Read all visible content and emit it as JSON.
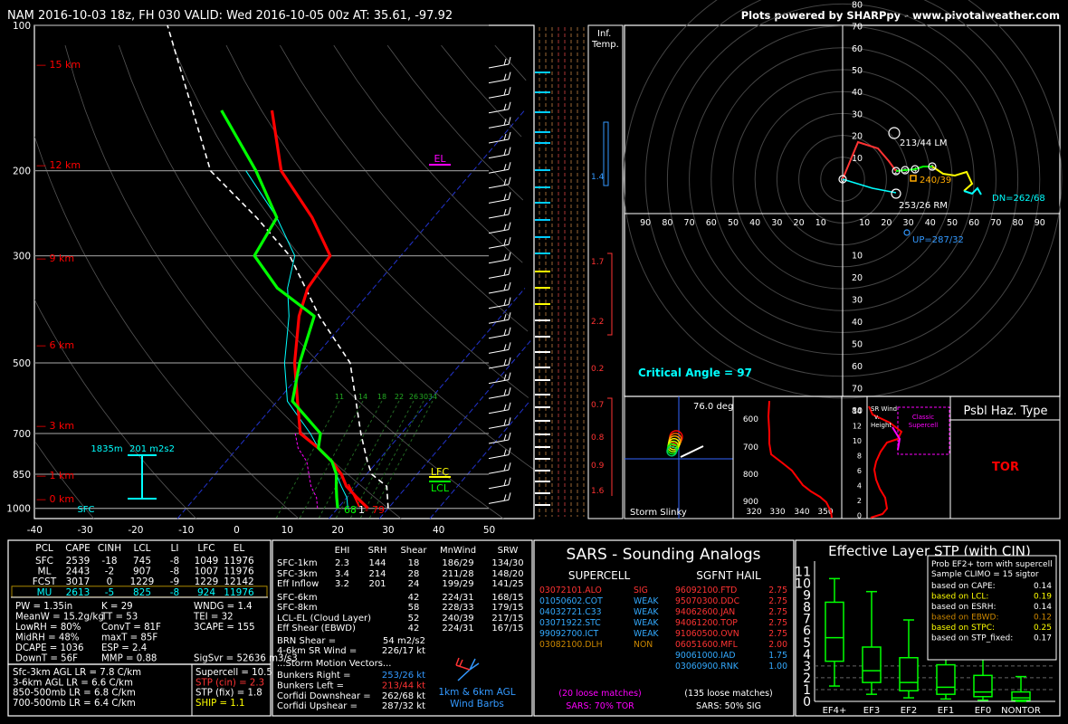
{
  "header": {
    "title": "NAM 2016-10-03 18z, FH 030    VALID: Wed 2016-10-05 00z    AT: 35.61, -97.92",
    "credit": "Plots powered by SHARPpy - www.pivotalweather.com"
  },
  "skewt": {
    "pressure_levels": [
      "100",
      "200",
      "300",
      "500",
      "700",
      "850",
      "1000"
    ],
    "temp_ticks": [
      "-40",
      "-30",
      "-20",
      "-10",
      "0",
      "10",
      "20",
      "30",
      "40",
      "50"
    ],
    "height_labels": [
      "15 km",
      "12 km",
      "9 km",
      "6 km",
      "3 km",
      "1 km",
      "0 km"
    ],
    "el_label": "EL",
    "lfc_label": "LFC",
    "lcl_label": "LCL",
    "sfc_label": "SFC",
    "srh_depth": "1835m",
    "srh_value": "201 m2s2",
    "sfc_td": "68",
    "sfc_sep": "1",
    "sfc_t": "79",
    "mixing_ratios": [
      "11",
      "14",
      "18",
      "22",
      "26",
      "30",
      "34"
    ],
    "colors": {
      "temp": "#ff0000",
      "dewpoint": "#00ff00",
      "parcel": "#ffffff",
      "wetbulb": "#00ffff",
      "virtual": "#ff00ff"
    },
    "chart_data": {
      "type": "line",
      "title": "",
      "xlabel": "",
      "ylabel": "",
      "series": [
        {
          "name": "",
          "color": "#ff0000",
          "x": [
            26,
            22,
            18,
            15,
            11,
            6,
            0,
            -6,
            -13,
            -20,
            -23,
            -24,
            -34,
            -48,
            -60
          ],
          "y": [
            1000,
            950,
            900,
            850,
            800,
            750,
            700,
            600,
            500,
            400,
            350,
            300,
            250,
            200,
            150
          ]
        },
        {
          "name": "",
          "color": "#00ff00",
          "x": [
            20,
            18,
            16,
            14,
            11,
            6,
            4,
            -7,
            -12,
            -17,
            -29,
            -39,
            -41,
            -53,
            -70
          ],
          "y": [
            1000,
            950,
            900,
            850,
            800,
            750,
            700,
            600,
            500,
            400,
            350,
            300,
            250,
            200,
            150
          ]
        }
      ]
    }
  },
  "panels": {
    "inf_temp": "Inf.\nTemp.",
    "inflow_values": [
      "1.4",
      "1.7",
      "2.2",
      "0.2",
      "0.7",
      "0.8",
      "0.9",
      "1.6"
    ],
    "hodograph": {
      "rings": [
        "10",
        "20",
        "30",
        "40",
        "50",
        "60",
        "70",
        "80"
      ],
      "x_ticks_left": [
        "90",
        "80",
        "70",
        "60",
        "50",
        "40",
        "30",
        "20",
        "10"
      ],
      "x_ticks_right": [
        "10",
        "20",
        "30",
        "40",
        "50",
        "60",
        "70",
        "80",
        "90"
      ],
      "lm": "213/44 LM",
      "rm": "253/26 RM",
      "mean": "240/39",
      "dn": "DN=262/68",
      "up": "UP=287/32",
      "critical_angle": "Critical Angle = 97"
    },
    "slinky": {
      "angle": "76.0 deg",
      "label": "Storm Slinky"
    },
    "theta": {
      "y_ticks": [
        "600",
        "700",
        "800",
        "900"
      ],
      "x_ticks": [
        "320",
        "330",
        "340",
        "350"
      ]
    },
    "srwind": {
      "y_ticks": [
        "14",
        "12",
        "10",
        "8",
        "6",
        "4",
        "2",
        "0"
      ],
      "label1": "SR Wind",
      "label2": "v.",
      "label3": "Height",
      "label4": "Classic",
      "label5": "Supercell"
    },
    "hazard": {
      "title": "Psbl Haz. Type",
      "value": "TOR"
    }
  },
  "parcels": {
    "headers": [
      "PCL",
      "CAPE",
      "CINH",
      "LCL",
      "LI",
      "LFC",
      "EL"
    ],
    "rows": [
      [
        "SFC",
        "2539",
        "-18",
        "745",
        "-8",
        "1049",
        "11976"
      ],
      [
        "ML",
        "2443",
        "-2",
        "907",
        "-8",
        "1007",
        "11976"
      ],
      [
        "FCST",
        "3017",
        "0",
        "1229",
        "-9",
        "1229",
        "12142"
      ],
      [
        "MU",
        "2613",
        "-5",
        "825",
        "-8",
        "924",
        "11976"
      ]
    ]
  },
  "thermo": {
    "col1": [
      "PW = 1.35in",
      "MeanW = 15.2g/kg",
      "LowRH = 80%",
      "MidRH = 48%",
      "DCAPE = 1036",
      "DownT = 56F"
    ],
    "col2": [
      "K = 29",
      "TT = 53",
      "ConvT = 81F",
      "maxT = 85F",
      "ESP = 2.4",
      "MMP = 0.88"
    ],
    "col3": [
      "WNDG = 1.4",
      "TEI = 32",
      "3CAPE = 155",
      "",
      "",
      "SigSvr = 52636 m3/s3"
    ],
    "lapse": [
      "Sfc-3km AGL LR = 7.8 C/km",
      "3-6km AGL LR = 6.6 C/km",
      "850-500mb LR = 6.8 C/km",
      "700-500mb LR = 6.4 C/km"
    ],
    "indices": [
      "Supercell = 10.5",
      "STP (cin) = 2.3",
      "STP (fix) = 1.8",
      "SHIP = 1.1"
    ]
  },
  "kinematics": {
    "headers": [
      "EHI",
      "SRH",
      "Shear",
      "MnWind",
      "SRW"
    ],
    "rows": [
      [
        "SFC-1km",
        "2.3",
        "144",
        "18",
        "186/29",
        "134/30"
      ],
      [
        "SFC-3km",
        "3.4",
        "214",
        "28",
        "211/28",
        "148/20"
      ],
      [
        "Eff Inflow",
        "3.2",
        "201",
        "24",
        "199/29",
        "141/25"
      ],
      [
        "SFC-6km",
        "",
        "",
        "42",
        "224/31",
        "168/15"
      ],
      [
        "SFC-8km",
        "",
        "",
        "58",
        "228/33",
        "179/15"
      ],
      [
        "LCL-EL (Cloud Layer)",
        "",
        "",
        "52",
        "240/39",
        "217/15"
      ],
      [
        "Eff Shear (EBWD)",
        "",
        "",
        "42",
        "224/31",
        "167/15"
      ]
    ],
    "brn": [
      "BRN Shear =",
      "54 m2/s2"
    ],
    "sr46": [
      "4-6km SR Wind =",
      "226/17 kt"
    ],
    "storm_title": "...Storm Motion Vectors...",
    "storm": [
      [
        "Bunkers Right =",
        "253/26 kt"
      ],
      [
        "Bunkers Left =",
        "213/44 kt"
      ],
      [
        "Corfidi Downshear =",
        "262/68 kt"
      ],
      [
        "Corfidi Upshear =",
        "287/32 kt"
      ]
    ],
    "barb_label1": "1km & 6km AGL",
    "barb_label2": "Wind Barbs"
  },
  "sars": {
    "title": "SARS - Sounding Analogs",
    "supercell_title": "SUPERCELL",
    "hail_title": "SGFNT HAIL",
    "supercell": [
      [
        "03072101.ALO",
        "SIG",
        "#ff3333"
      ],
      [
        "01050602.COT",
        "WEAK",
        "#33aaff"
      ],
      [
        "04032721.C33",
        "WEAK",
        "#33aaff"
      ],
      [
        "03071922.STC",
        "WEAK",
        "#33aaff"
      ],
      [
        "99092700.ICT",
        "WEAK",
        "#33aaff"
      ],
      [
        "03082100.DLH",
        "NON",
        "#cc8800"
      ]
    ],
    "hail": [
      [
        "96092100.FTD",
        "2.75",
        "#ff3333"
      ],
      [
        "95070300.DDC",
        "2.75",
        "#ff3333"
      ],
      [
        "94062600.JAN",
        "2.75",
        "#ff3333"
      ],
      [
        "94061200.TOP",
        "2.75",
        "#ff3333"
      ],
      [
        "91060500.OVN",
        "2.75",
        "#ff3333"
      ],
      [
        "06051600.MFL",
        "2.00",
        "#ff3333"
      ],
      [
        "90061000.IAD",
        "1.75",
        "#33aaff"
      ],
      [
        "03060900.RNK",
        "1.00",
        "#33aaff"
      ]
    ],
    "sc_matches": "(20 loose matches)",
    "sc_prob": "SARS: 70% TOR",
    "hail_matches": "(135 loose matches)",
    "hail_prob": "SARS: 50% SIG"
  },
  "stp": {
    "title": "Effective Layer STP (with CIN)",
    "prob_title": "Prob EF2+ torn with supercell",
    "climo": "Sample CLIMO = 15 sigtor",
    "rows": [
      [
        "based on CAPE:",
        "0.14",
        "#ffffff"
      ],
      [
        "based on LCL:",
        "0.19",
        "#ffff00"
      ],
      [
        "based on ESRH:",
        "0.14",
        "#ffffff"
      ],
      [
        "based on EBWD:",
        "0.12",
        "#cc8800"
      ],
      [
        "based on STPC:",
        "0.25",
        "#ffff00"
      ],
      [
        "based on STP_fixed:",
        "0.17",
        "#ffffff"
      ]
    ],
    "y_ticks": [
      "0",
      "1",
      "2",
      "3",
      "4",
      "5",
      "6",
      "7",
      "8",
      "9",
      "10",
      "11"
    ],
    "chart_data": {
      "type": "box",
      "categories": [
        "EF4+",
        "EF3",
        "EF2",
        "EF1",
        "EF0",
        "NONTOR"
      ],
      "whisker_low": [
        1.3,
        0.6,
        0.3,
        0.2,
        0.1,
        0.0
      ],
      "q1": [
        3.4,
        1.6,
        0.9,
        0.6,
        0.4,
        0.1
      ],
      "median": [
        5.4,
        2.6,
        1.6,
        1.2,
        0.8,
        0.3
      ],
      "q3": [
        8.4,
        4.6,
        3.7,
        3.1,
        2.2,
        0.8
      ],
      "whisker_high": [
        10.4,
        9.3,
        6.9,
        7.1,
        4.5,
        2.1
      ],
      "ylim": [
        0,
        11.5
      ]
    }
  }
}
